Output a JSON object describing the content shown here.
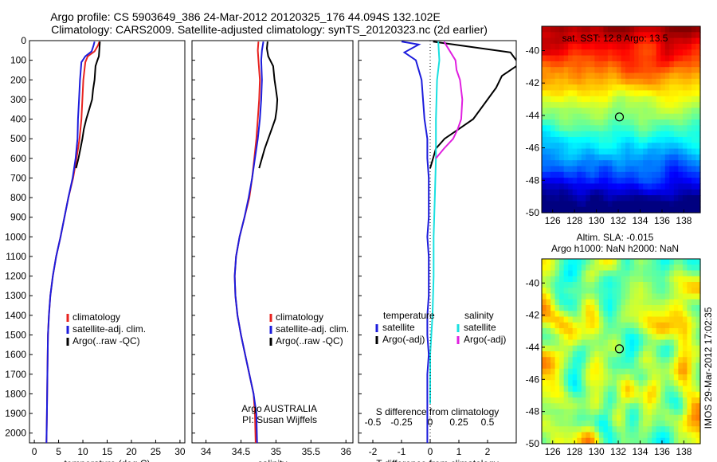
{
  "titles": {
    "line1": "Argo profile: CS 5903649_386 24-Mar-2012 20120325_176 44.094S 132.102E",
    "line2": "Climatology: CARS2009. Satellite-adjusted climatology: synTS_20120323.nc (2d earlier)"
  },
  "annotations": {
    "argo_country": "Argo AUSTRALIA",
    "pi": "PI: Susan Wijffels",
    "sst_title": "sat. SST: 12.8 Argo: 13.5",
    "sla_title_1": "Altim. SLA: -0.015",
    "sla_title_2": "Argo h1000: NaN h2000: NaN",
    "side_stamp": "IMOS 29-Mar-2012 17:02:35"
  },
  "colors": {
    "climatology": "#e8231f",
    "satellite": "#1c1cdc",
    "argo": "#000000",
    "sat_salinity": "#19e0e0",
    "argo_salinity": "#e020e0"
  },
  "chart_data": [
    {
      "type": "line",
      "xlabel": "temperature (deg C)",
      "ylabel": "",
      "xlim": [
        -1,
        31
      ],
      "ylim": [
        2050,
        0
      ],
      "y_reversed": true,
      "xticks": [
        "0",
        "5",
        "10",
        "15",
        "20",
        "25",
        "30"
      ],
      "xtick_values": [
        0,
        5,
        10,
        15,
        20,
        25,
        30
      ],
      "yticks": [
        "0",
        "100",
        "200",
        "300",
        "400",
        "500",
        "600",
        "700",
        "800",
        "900",
        "1000",
        "1100",
        "1200",
        "1300",
        "1400",
        "1500",
        "1600",
        "1700",
        "1800",
        "1900",
        "2000"
      ],
      "ytick_values": [
        0,
        100,
        200,
        300,
        400,
        500,
        600,
        700,
        800,
        900,
        1000,
        1100,
        1200,
        1300,
        1400,
        1500,
        1600,
        1700,
        1800,
        1900,
        2000
      ],
      "legend": {
        "position": "lower-center",
        "entries": [
          "climatology",
          "satellite-adj. clim.",
          "Argo(..raw -QC)"
        ]
      },
      "series": [
        {
          "name": "climatology",
          "color": "#e8231f",
          "x": [
            13.4,
            13.1,
            12.4,
            11.0,
            10.5,
            10.1,
            9.9,
            9.7,
            9.3,
            8.7,
            8.0,
            7.0,
            6.2,
            5.4,
            4.5,
            3.8,
            3.3,
            3.0,
            2.8,
            2.7,
            2.6,
            2.5
          ],
          "y": [
            5,
            25,
            55,
            80,
            110,
            200,
            300,
            400,
            500,
            600,
            700,
            800,
            900,
            1000,
            1100,
            1200,
            1300,
            1400,
            1500,
            1700,
            1900,
            2050
          ]
        },
        {
          "name": "satellite-adj. clim.",
          "color": "#1c1cdc",
          "x": [
            12.4,
            12.2,
            11.8,
            10.5,
            9.7,
            9.4,
            9.2,
            9.0,
            8.9,
            8.5,
            7.9,
            7.0,
            6.2,
            5.4,
            4.5,
            3.8,
            3.3,
            3.0,
            2.8,
            2.7,
            2.6,
            2.5
          ],
          "y": [
            5,
            25,
            55,
            80,
            110,
            200,
            300,
            400,
            500,
            600,
            700,
            800,
            900,
            1000,
            1100,
            1200,
            1300,
            1400,
            1500,
            1700,
            1900,
            2050
          ]
        },
        {
          "name": "Argo(..raw -QC)",
          "color": "#000000",
          "x": [
            13.5,
            13.4,
            13.3,
            13.0,
            12.6,
            12.4,
            12.1,
            11.9,
            11.3,
            10.7,
            10.2,
            9.9,
            9.5,
            9.1,
            8.6
          ],
          "y": [
            5,
            40,
            80,
            100,
            130,
            200,
            250,
            300,
            350,
            400,
            450,
            500,
            550,
            600,
            650
          ]
        }
      ]
    },
    {
      "type": "line",
      "xlabel": "salinity",
      "ylabel": "",
      "xlim": [
        33.8,
        36.1
      ],
      "ylim": [
        2050,
        0
      ],
      "y_reversed": true,
      "xticks": [
        "34",
        "34.5",
        "35",
        "35.5",
        "36"
      ],
      "xtick_values": [
        34,
        34.5,
        35,
        35.5,
        36
      ],
      "legend": {
        "position": "lower-center",
        "entries": [
          "climatology",
          "satellite-adj. clim.",
          "Argo(..raw -QC)"
        ]
      },
      "series": [
        {
          "name": "climatology",
          "color": "#e8231f",
          "x": [
            34.75,
            34.74,
            34.75,
            34.77,
            34.76,
            34.74,
            34.72,
            34.69,
            34.66,
            34.62,
            34.55,
            34.48,
            34.43,
            34.41,
            34.42,
            34.45,
            34.5,
            34.56,
            34.62,
            34.68,
            34.7,
            34.71
          ],
          "y": [
            5,
            50,
            100,
            200,
            300,
            400,
            500,
            600,
            700,
            800,
            900,
            1000,
            1100,
            1200,
            1300,
            1400,
            1500,
            1600,
            1700,
            1800,
            1900,
            2050
          ]
        },
        {
          "name": "satellite-adj. clim.",
          "color": "#1c1cdc",
          "x": [
            34.82,
            34.8,
            34.79,
            34.8,
            34.79,
            34.77,
            34.74,
            34.7,
            34.66,
            34.61,
            34.55,
            34.48,
            34.43,
            34.41,
            34.42,
            34.45,
            34.5,
            34.56,
            34.62,
            34.68,
            34.72,
            34.73
          ],
          "y": [
            5,
            50,
            100,
            200,
            300,
            400,
            500,
            600,
            700,
            800,
            900,
            1000,
            1100,
            1200,
            1300,
            1400,
            1500,
            1600,
            1700,
            1800,
            1900,
            2050
          ]
        },
        {
          "name": "Argo(..raw -QC)",
          "color": "#000000",
          "x": [
            34.88,
            34.87,
            34.89,
            34.96,
            34.98,
            35.0,
            35.02,
            35.01,
            34.99,
            34.94,
            34.89,
            34.84,
            34.8,
            34.76
          ],
          "y": [
            5,
            40,
            80,
            130,
            200,
            250,
            300,
            350,
            400,
            450,
            500,
            550,
            600,
            650
          ]
        }
      ]
    },
    {
      "type": "line",
      "xlabel": "T difference from climatology",
      "xlabel2": "S difference from climatology",
      "ylabel": "",
      "xlim": [
        -2.5,
        3
      ],
      "x2lim": [
        -0.625,
        0.75
      ],
      "ylim": [
        2050,
        0
      ],
      "y_reversed": true,
      "xticks": [
        "-2",
        "-1",
        "0",
        "1",
        "2"
      ],
      "xtick_values": [
        -2,
        -1,
        0,
        1,
        2
      ],
      "x2ticks": [
        "-0.5",
        "-0.25",
        "0",
        "0.25",
        "0.5"
      ],
      "x2tick_values": [
        -0.5,
        -0.25,
        0,
        0.25,
        0.5
      ],
      "legend": {
        "position": "lower-center",
        "headers": [
          "temperature",
          "salinity"
        ],
        "entries": [
          "satellite",
          "Argo(-adj)",
          "satellite",
          "Argo(-adj)"
        ]
      },
      "series": [
        {
          "name": "satellite",
          "color": "#1c1cdc",
          "axis": "T",
          "x": [
            -1.0,
            -0.4,
            -0.9,
            -0.5,
            -0.3,
            -0.2,
            -0.1,
            -0.1,
            -0.05,
            -0.05,
            -0.05,
            -0.1,
            -0.05,
            -0.05,
            -0.05,
            -0.1,
            -0.1,
            -0.05,
            -0.1,
            -0.1,
            -0.1
          ],
          "y": [
            5,
            20,
            60,
            100,
            200,
            400,
            500,
            600,
            700,
            800,
            900,
            1000,
            1100,
            1200,
            1300,
            1400,
            1500,
            1600,
            1700,
            1850,
            2050
          ]
        },
        {
          "name": "Argo(-adj)",
          "color": "#000000",
          "axis": "T",
          "x": [
            0.1,
            2.8,
            3.1,
            2.5,
            2.3,
            2.0,
            1.5,
            1.0,
            0.5,
            0.2,
            0.0
          ],
          "y": [
            5,
            60,
            120,
            180,
            240,
            300,
            400,
            450,
            500,
            550,
            650
          ]
        },
        {
          "name": "satellite",
          "color": "#19e0e0",
          "axis": "S",
          "x": [
            0.07,
            0.08,
            0.06,
            0.05,
            0.05,
            0.04,
            0.03,
            0.03,
            0.02,
            0.0,
            0.0
          ],
          "y": [
            5,
            100,
            200,
            400,
            600,
            800,
            1000,
            1200,
            1400,
            1600,
            1850
          ]
        },
        {
          "name": "Argo(-adj)",
          "color": "#e020e0",
          "axis": "S",
          "x": [
            0.12,
            0.22,
            0.23,
            0.26,
            0.28,
            0.27,
            0.24,
            0.2,
            0.12,
            0.05
          ],
          "y": [
            5,
            100,
            150,
            200,
            300,
            400,
            450,
            500,
            550,
            600
          ]
        }
      ]
    },
    {
      "type": "heatmap",
      "title": "sat. SST: 12.8 Argo: 13.5",
      "xlim": [
        125,
        139.5
      ],
      "ylim": [
        -50,
        -38.5
      ],
      "xticks": [
        "126",
        "128",
        "130",
        "132",
        "134",
        "136",
        "138"
      ],
      "xtick_values": [
        126,
        128,
        130,
        132,
        134,
        136,
        138
      ],
      "yticks": [
        "-50",
        "-48",
        "-46",
        "-44",
        "-42",
        "-40"
      ],
      "ytick_values": [
        -50,
        -48,
        -46,
        -44,
        -42,
        -40
      ],
      "marker": {
        "lon": 132.102,
        "lat": -44.094
      }
    },
    {
      "type": "heatmap",
      "title": "Altim. SLA: -0.015",
      "subtitle": "Argo h1000: NaN h2000: NaN",
      "xlim": [
        125,
        139.5
      ],
      "ylim": [
        -50,
        -38.5
      ],
      "xticks": [
        "126",
        "128",
        "130",
        "132",
        "134",
        "136",
        "138"
      ],
      "xtick_values": [
        126,
        128,
        130,
        132,
        134,
        136,
        138
      ],
      "yticks": [
        "-50",
        "-48",
        "-46",
        "-44",
        "-42",
        "-40"
      ],
      "ytick_values": [
        -50,
        -48,
        -46,
        -44,
        -42,
        -40
      ],
      "marker": {
        "lon": 132.102,
        "lat": -44.094
      }
    }
  ]
}
